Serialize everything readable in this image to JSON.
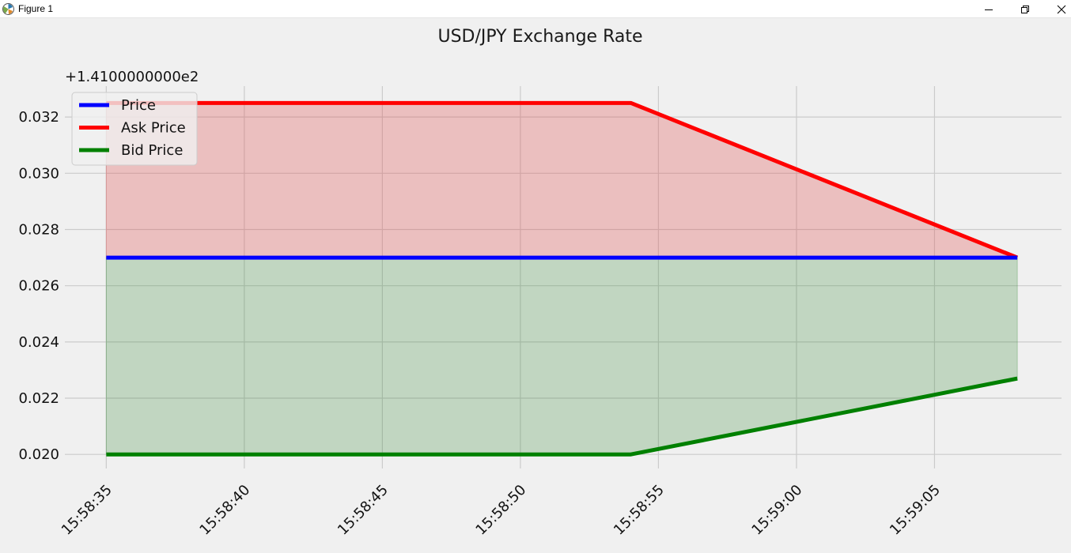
{
  "window": {
    "title": "Figure 1",
    "icon": "matplotlib-figure-icon",
    "controls": [
      "minimize-icon",
      "restore-icon",
      "close-icon"
    ]
  },
  "chart_data": {
    "type": "line",
    "title": "USD/JPY Exchange Rate",
    "xlabel": "",
    "ylabel": "",
    "y_offset_label": "+1.4100000000e2",
    "y_offset": 141,
    "x_ticks": [
      "15:58:35",
      "15:58:40",
      "15:58:45",
      "15:58:50",
      "15:58:55",
      "15:59:00",
      "15:59:05"
    ],
    "y_ticks": [
      "0.020",
      "0.022",
      "0.024",
      "0.026",
      "0.028",
      "0.030",
      "0.032"
    ],
    "xlim": [
      "15:58:33.5",
      "15:59:09.6"
    ],
    "ylim": [
      0.0195,
      0.0331
    ],
    "grid": true,
    "legend_position": "upper-left",
    "x": [
      "15:58:35",
      "15:58:54",
      "15:59:08"
    ],
    "series": [
      {
        "name": "Price",
        "color": "#0000ff",
        "values": [
          0.027,
          0.027,
          0.027
        ]
      },
      {
        "name": "Ask Price",
        "color": "#ff0000",
        "values": [
          0.0325,
          0.0325,
          0.027
        ]
      },
      {
        "name": "Bid Price",
        "color": "#008000",
        "values": [
          0.02,
          0.02,
          0.0227
        ]
      }
    ],
    "fills": [
      {
        "between": [
          "Price",
          "Ask Price"
        ],
        "color": "#e05050",
        "opacity": 0.3
      },
      {
        "between": [
          "Bid Price",
          "Price"
        ],
        "color": "#338833",
        "opacity": 0.25
      }
    ]
  }
}
